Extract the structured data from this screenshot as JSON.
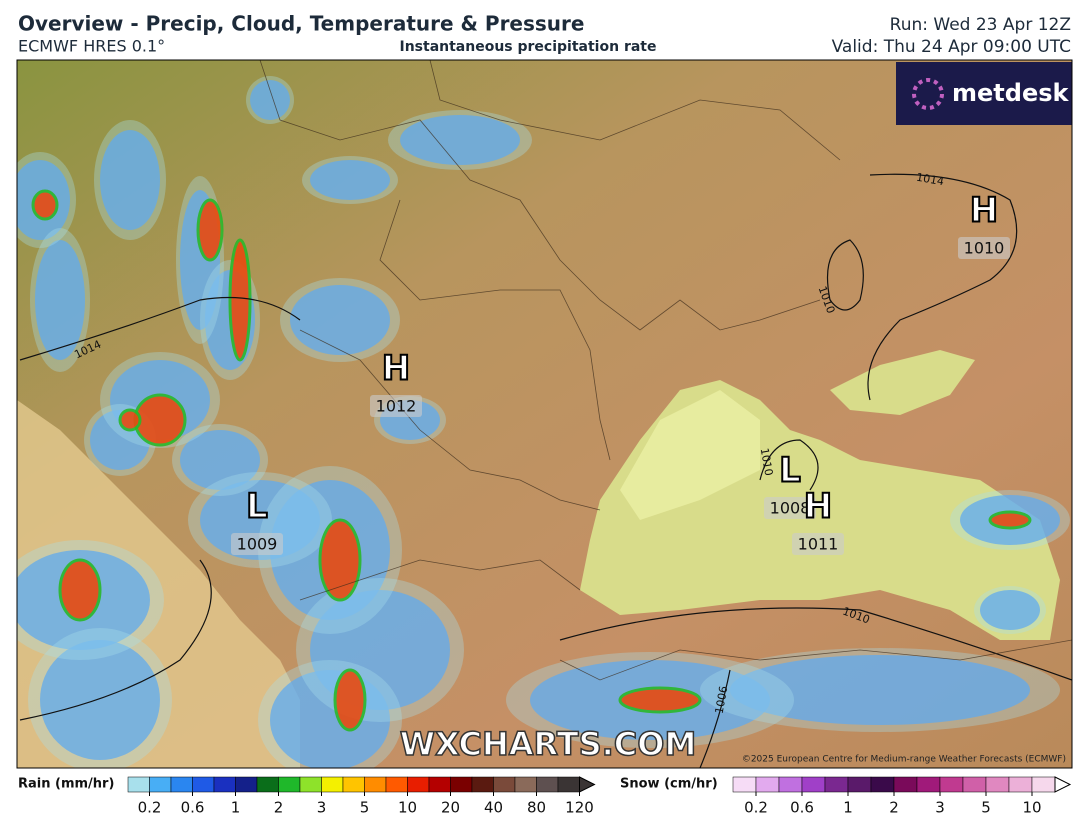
{
  "header": {
    "title": "Overview - Precip, Cloud, Temperature & Pressure",
    "model": "ECMWF HRES 0.1°",
    "subtitle": "Instantaneous precipitation rate",
    "run": "Run: Wed 23 Apr 12Z",
    "valid": "Valid: Thu 24 Apr 09:00 UTC"
  },
  "map": {
    "logo": "metdesk",
    "watermark": "WXCHARTS.COM",
    "copyright": "©2025 European Centre for Medium-range Weather Forecasts (ECMWF)",
    "pressure_centers": [
      {
        "symbol": "H",
        "value": "1012"
      },
      {
        "symbol": "L",
        "value": "1009"
      },
      {
        "symbol": "L",
        "value": "1008"
      },
      {
        "symbol": "H",
        "value": "1011"
      },
      {
        "symbol": "H",
        "value": "1010"
      }
    ],
    "isobar_labels": [
      "1014",
      "1014",
      "1010",
      "1010",
      "1010",
      "1006"
    ]
  },
  "legend": {
    "rain": {
      "label": "Rain (mm/hr)",
      "ticks": [
        0.2,
        0.6,
        1,
        2,
        3,
        5,
        10,
        20,
        40,
        80,
        120
      ],
      "colors": [
        "#a8e0ec",
        "#48aef5",
        "#2a86f0",
        "#1f5ae6",
        "#1a30c0",
        "#14208a",
        "#0a6e1a",
        "#1fb82a",
        "#8ee22a",
        "#f4f000",
        "#ffc400",
        "#ff8c00",
        "#ff5a00",
        "#e81e00",
        "#b40000",
        "#7a0000",
        "#5a1a10",
        "#7a4a3a",
        "#8a6a5a",
        "#5e5050",
        "#3a3434"
      ]
    },
    "snow": {
      "label": "Snow (cm/hr)",
      "ticks": [
        0.2,
        0.6,
        1,
        2,
        3,
        5,
        10
      ],
      "colors": [
        "#f6dcf6",
        "#e2aaee",
        "#c070e0",
        "#a040c8",
        "#7a2890",
        "#5a1a6a",
        "#3a0a4a",
        "#7a0a5a",
        "#a01a7a",
        "#c03a90",
        "#d060a8",
        "#e088c0",
        "#ecb0d8",
        "#f6d8ec"
      ]
    }
  }
}
